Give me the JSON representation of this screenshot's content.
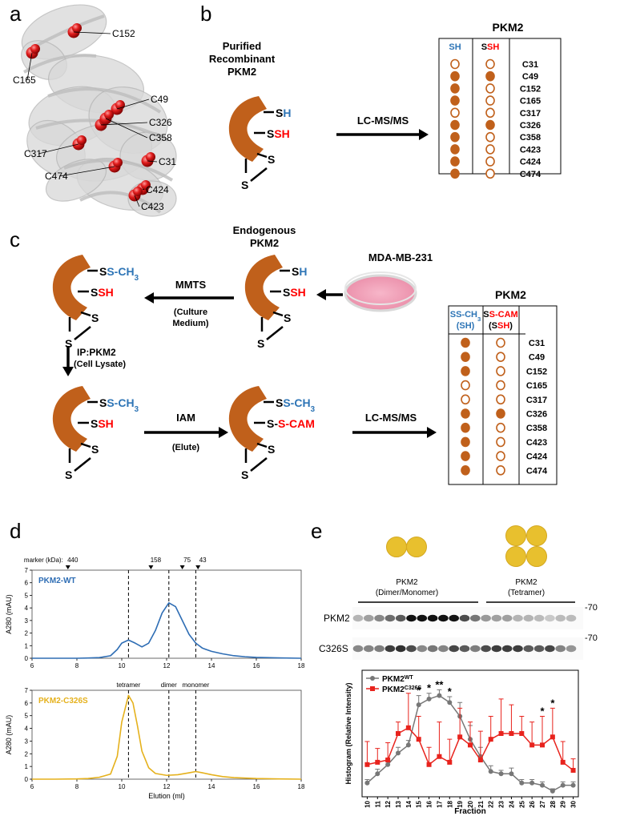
{
  "panel_labels": [
    "a",
    "b",
    "c",
    "d",
    "e"
  ],
  "panel_a": {
    "residues": [
      "C152",
      "C165",
      "C49",
      "C326",
      "C358",
      "C317",
      "C31",
      "C474",
      "C424",
      "C423"
    ]
  },
  "panel_b": {
    "title": [
      "Purified",
      "Recombinant",
      "PKM2"
    ],
    "protein_labels": [
      {
        "parts": [
          {
            "text": "S",
            "color": "#000000"
          },
          {
            "text": "H",
            "color": "#2e75b6"
          }
        ]
      },
      {
        "parts": [
          {
            "text": "S",
            "color": "#000000"
          },
          {
            "text": "SH",
            "color": "#ff0000"
          }
        ]
      },
      {
        "parts": [
          {
            "text": "S",
            "color": "#000000"
          }
        ]
      },
      {
        "parts": [
          {
            "text": "S",
            "color": "#000000"
          }
        ]
      }
    ],
    "arrow_label": "LC-MS/MS",
    "table": {
      "title": "PKM2",
      "headers": [
        {
          "parts": [
            {
              "text": "S",
              "color": "#2e75b6"
            },
            {
              "text": "H",
              "color": "#2e75b6"
            }
          ]
        },
        {
          "parts": [
            {
              "text": "S",
              "color": "#000000"
            },
            {
              "text": "SH",
              "color": "#ff0000"
            }
          ]
        }
      ],
      "sites": [
        "C31",
        "C49",
        "C152",
        "C165",
        "C317",
        "C326",
        "C358",
        "C423",
        "C424",
        "C474"
      ],
      "filled": [
        [
          false,
          false
        ],
        [
          true,
          true
        ],
        [
          true,
          false
        ],
        [
          true,
          false
        ],
        [
          false,
          false
        ],
        [
          true,
          true
        ],
        [
          true,
          false
        ],
        [
          true,
          false
        ],
        [
          true,
          false
        ],
        [
          true,
          false
        ]
      ],
      "color": "#c0601b"
    }
  },
  "panel_c": {
    "title": [
      "Endogenous",
      "PKM2"
    ],
    "cell_line": "MDA-MB-231",
    "steps": {
      "mmts": "MMTS",
      "mmts_note": [
        "(Culture",
        "Medium)"
      ],
      "ip": "IP:PKM2",
      "ip_note": "(Cell Lysate)",
      "iam": "IAM",
      "iam_note": "(Elute)",
      "ms": "LC-MS/MS"
    },
    "proteins": [
      {
        "labels": [
          {
            "parts": [
              {
                "text": "S",
                "color": "#000000"
              },
              {
                "text": "S-CH",
                "color": "#2e75b6"
              },
              {
                "text": "3",
                "color": "#2e75b6",
                "sub": true
              }
            ]
          },
          {
            "parts": [
              {
                "text": "S",
                "color": "#000000"
              },
              {
                "text": "SH",
                "color": "#ff0000"
              }
            ]
          },
          {
            "parts": [
              {
                "text": "S",
                "color": "#000000"
              }
            ]
          },
          {
            "parts": [
              {
                "text": "S",
                "color": "#000000"
              }
            ]
          }
        ]
      },
      {
        "labels": [
          {
            "parts": [
              {
                "text": "S",
                "color": "#000000"
              },
              {
                "text": "H",
                "color": "#2e75b6"
              }
            ]
          },
          {
            "parts": [
              {
                "text": "S",
                "color": "#000000"
              },
              {
                "text": "SH",
                "color": "#ff0000"
              }
            ]
          },
          {
            "parts": [
              {
                "text": "S",
                "color": "#000000"
              }
            ]
          },
          {
            "parts": [
              {
                "text": "S",
                "color": "#000000"
              }
            ]
          }
        ]
      },
      {
        "labels": [
          {
            "parts": [
              {
                "text": "S",
                "color": "#000000"
              },
              {
                "text": "S-CH",
                "color": "#2e75b6"
              },
              {
                "text": "3",
                "color": "#2e75b6",
                "sub": true
              }
            ]
          },
          {
            "parts": [
              {
                "text": "S",
                "color": "#000000"
              },
              {
                "text": "SH",
                "color": "#ff0000"
              }
            ]
          },
          {
            "parts": [
              {
                "text": "S",
                "color": "#000000"
              }
            ]
          },
          {
            "parts": [
              {
                "text": "S",
                "color": "#000000"
              }
            ]
          }
        ]
      },
      {
        "labels": [
          {
            "parts": [
              {
                "text": "S",
                "color": "#000000"
              },
              {
                "text": "S-CH",
                "color": "#2e75b6"
              },
              {
                "text": "3",
                "color": "#2e75b6",
                "sub": true
              }
            ]
          },
          {
            "parts": [
              {
                "text": "S-",
                "color": "#000000"
              },
              {
                "text": "S-CAM",
                "color": "#ff0000"
              }
            ]
          },
          {
            "parts": [
              {
                "text": "S",
                "color": "#000000"
              }
            ]
          },
          {
            "parts": [
              {
                "text": "S",
                "color": "#000000"
              }
            ]
          }
        ]
      }
    ],
    "table": {
      "title": "PKM2",
      "headers": [
        [
          {
            "parts": [
              {
                "text": "S",
                "color": "#2e75b6"
              },
              {
                "text": "S-CH",
                "color": "#2e75b6"
              },
              {
                "text": "3",
                "color": "#2e75b6",
                "sub": true
              }
            ]
          },
          {
            "parts": [
              {
                "text": "(S",
                "color": "#2e75b6"
              },
              {
                "text": "H",
                "color": "#2e75b6"
              },
              {
                "text": ")",
                "color": "#2e75b6"
              }
            ]
          }
        ],
        [
          {
            "parts": [
              {
                "text": "S",
                "color": "#000000"
              },
              {
                "text": "S-CAM",
                "color": "#ff0000"
              }
            ]
          },
          {
            "parts": [
              {
                "text": "(S",
                "color": "#000000"
              },
              {
                "text": "SH",
                "color": "#ff0000"
              },
              {
                "text": ")",
                "color": "#000000"
              }
            ]
          }
        ]
      ],
      "sites": [
        "C31",
        "C49",
        "C152",
        "C165",
        "C317",
        "C326",
        "C358",
        "C423",
        "C424",
        "C474"
      ],
      "filled": [
        [
          true,
          false
        ],
        [
          true,
          false
        ],
        [
          true,
          false
        ],
        [
          false,
          false
        ],
        [
          false,
          false
        ],
        [
          true,
          true
        ],
        [
          true,
          false
        ],
        [
          true,
          false
        ],
        [
          true,
          false
        ],
        [
          true,
          false
        ]
      ],
      "color": "#c0601b"
    }
  },
  "chart_data": [
    {
      "type": "line",
      "y_label": "A280 (mAU)",
      "xlim": [
        6,
        18
      ],
      "xticks": [
        6,
        8,
        10,
        12,
        14,
        16,
        18
      ],
      "ylim": [
        0,
        7
      ],
      "yticks": [
        0,
        1,
        2,
        3,
        4,
        5,
        6,
        7
      ],
      "marker_title": "marker (kDa):",
      "markers": {
        "kda": [
          440,
          158,
          75,
          43
        ],
        "positions": [
          7.6,
          11.3,
          12.7,
          13.4
        ]
      },
      "dashed_x": [
        10.3,
        12.1,
        13.3
      ],
      "series": [
        {
          "name": "PKM2-WT",
          "color": "#2e6db4",
          "x": [
            6,
            6.5,
            7,
            7.5,
            8,
            8.5,
            9,
            9.5,
            9.8,
            10,
            10.3,
            10.6,
            10.9,
            11.2,
            11.5,
            11.8,
            12.1,
            12.4,
            12.7,
            13,
            13.3,
            13.6,
            14,
            14.5,
            15,
            15.5,
            16,
            17,
            18
          ],
          "values": [
            0,
            0,
            0,
            0,
            0,
            0.02,
            0.05,
            0.2,
            0.7,
            1.2,
            1.45,
            1.2,
            0.9,
            1.2,
            2.2,
            3.6,
            4.4,
            4.1,
            3.0,
            1.9,
            1.2,
            0.8,
            0.55,
            0.35,
            0.2,
            0.12,
            0.07,
            0.03,
            0
          ]
        }
      ]
    },
    {
      "type": "line",
      "y_label": "A280 (mAU)",
      "x_label": "Elution (ml)",
      "xlim": [
        6,
        18
      ],
      "xticks": [
        6,
        8,
        10,
        12,
        14,
        16,
        18
      ],
      "ylim": [
        0,
        7
      ],
      "yticks": [
        0,
        1,
        2,
        3,
        4,
        5,
        6,
        7
      ],
      "dashed_x": [
        10.3,
        12.1,
        13.3
      ],
      "dashed_labels": [
        "tetramer",
        "dimer",
        "monomer"
      ],
      "series": [
        {
          "name": "PKM2-C326S",
          "color": "#e5b11c",
          "x": [
            6,
            7,
            8,
            8.5,
            9,
            9.5,
            9.8,
            10,
            10.3,
            10.5,
            10.7,
            10.9,
            11.2,
            11.5,
            12,
            12.5,
            13,
            13.3,
            13.6,
            14,
            14.5,
            15,
            16,
            17,
            18
          ],
          "values": [
            0,
            0,
            0.02,
            0.05,
            0.15,
            0.4,
            1.8,
            4.5,
            6.6,
            6.0,
            4.2,
            2.2,
            0.9,
            0.45,
            0.3,
            0.35,
            0.5,
            0.6,
            0.5,
            0.35,
            0.2,
            0.12,
            0.05,
            0.02,
            0
          ]
        }
      ]
    },
    {
      "type": "errorline",
      "y_label": "Histogram (Relative Intensity)",
      "x_label": "Fraction",
      "xlim": [
        9.5,
        30.5
      ],
      "xticks": [
        10,
        11,
        12,
        13,
        14,
        15,
        16,
        17,
        18,
        19,
        20,
        21,
        22,
        23,
        24,
        25,
        26,
        27,
        28,
        29,
        30
      ],
      "ylim": [
        0,
        1.1
      ],
      "legend": "upper left",
      "x": [
        10,
        11,
        12,
        13,
        14,
        15,
        16,
        17,
        18,
        19,
        20,
        21,
        22,
        23,
        24,
        25,
        26,
        27,
        28,
        29,
        30
      ],
      "series": [
        {
          "name": "PKM2",
          "superscript": "WT",
          "color": "#777777",
          "marker": "circle",
          "values": [
            0.12,
            0.2,
            0.28,
            0.38,
            0.45,
            0.8,
            0.85,
            0.88,
            0.82,
            0.7,
            0.5,
            0.35,
            0.22,
            0.2,
            0.2,
            0.12,
            0.12,
            0.1,
            0.05,
            0.1,
            0.1
          ],
          "errors": [
            0.03,
            0.04,
            0.04,
            0.05,
            0.04,
            0.08,
            0.05,
            0.05,
            0.05,
            0.12,
            0.12,
            0.08,
            0.05,
            0.03,
            0.05,
            0.03,
            0.03,
            0.03,
            0.02,
            0.03,
            0.03
          ]
        },
        {
          "name": "PKM2",
          "superscript": "C326S",
          "color": "#e8231d",
          "marker": "square",
          "values": [
            0.28,
            0.3,
            0.32,
            0.55,
            0.6,
            0.5,
            0.28,
            0.35,
            0.3,
            0.52,
            0.45,
            0.32,
            0.5,
            0.55,
            0.55,
            0.55,
            0.45,
            0.45,
            0.52,
            0.3,
            0.23
          ],
          "errors": [
            0.2,
            0.12,
            0.15,
            0.1,
            0.3,
            0.2,
            0.15,
            0.3,
            0.2,
            0.25,
            0.2,
            0.25,
            0.2,
            0.3,
            0.25,
            0.15,
            0.2,
            0.25,
            0.25,
            0.18,
            0.1
          ]
        }
      ],
      "annotations": [
        {
          "x": 15,
          "text": "*"
        },
        {
          "x": 16,
          "text": "*"
        },
        {
          "x": 17,
          "text": "**"
        },
        {
          "x": 18,
          "text": "*"
        },
        {
          "x": 27,
          "text": "*"
        },
        {
          "x": 28,
          "text": "*"
        }
      ]
    }
  ],
  "panel_e": {
    "groups": [
      {
        "title": "PKM2",
        "subtitle": "(Dimer/Monomer)"
      },
      {
        "title": "PKM2",
        "subtitle": "(Tetramer)"
      }
    ],
    "blot_rows": [
      "PKM2",
      "C326S"
    ],
    "mw": [
      -70,
      -70
    ],
    "oligomer_color": "#e8c02e"
  }
}
